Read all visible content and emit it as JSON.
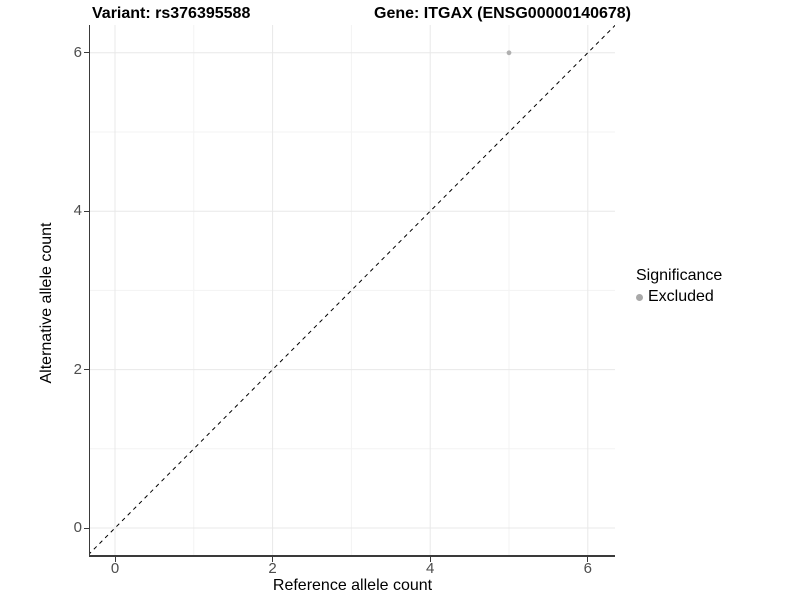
{
  "header": {
    "variant_title": "Variant: rs376395588",
    "gene_title": "Gene: ITGAX (ENSG00000140678)"
  },
  "axes": {
    "x": {
      "label": "Reference allele count",
      "tick_labels": [
        "0",
        "2",
        "4",
        "6"
      ]
    },
    "y": {
      "label": "Alternative allele count",
      "tick_labels": [
        "0",
        "2",
        "4",
        "6"
      ]
    }
  },
  "legend": {
    "title": "Significance",
    "items": [
      {
        "label": "Excluded",
        "marker_color": "#a9a9a9"
      }
    ]
  },
  "chart_data": {
    "type": "scatter",
    "title": "Variant: rs376395588 / Gene: ITGAX (ENSG00000140678)",
    "xlabel": "Reference allele count",
    "ylabel": "Alternative allele count",
    "xlim": [
      -0.32,
      6.36
    ],
    "ylim": [
      -0.34,
      6.36
    ],
    "x_major_ticks": [
      0,
      2,
      4,
      6
    ],
    "y_major_ticks": [
      0,
      2,
      4,
      6
    ],
    "x_minor_ticks": [
      1,
      3,
      5
    ],
    "y_minor_ticks": [
      1,
      3,
      5
    ],
    "grid": "major and minor, light grey on white background",
    "legend_position": "right",
    "series": [
      {
        "name": "Excluded",
        "color": "#b0b0b0",
        "points": [
          [
            5,
            6
          ]
        ]
      }
    ],
    "reference_line": {
      "equation": "y = x",
      "style": "dashed",
      "color": "#000000",
      "from": [
        -0.34,
        -0.34
      ],
      "to": [
        6.36,
        6.36
      ]
    }
  },
  "colors": {
    "background": "#ffffff",
    "grid_major": "#e8e8e8",
    "grid_minor": "#f3f3f3",
    "axis_line": "#3a3a3a",
    "tick_label": "#4d4d4d",
    "point": "#b0b0b0"
  }
}
